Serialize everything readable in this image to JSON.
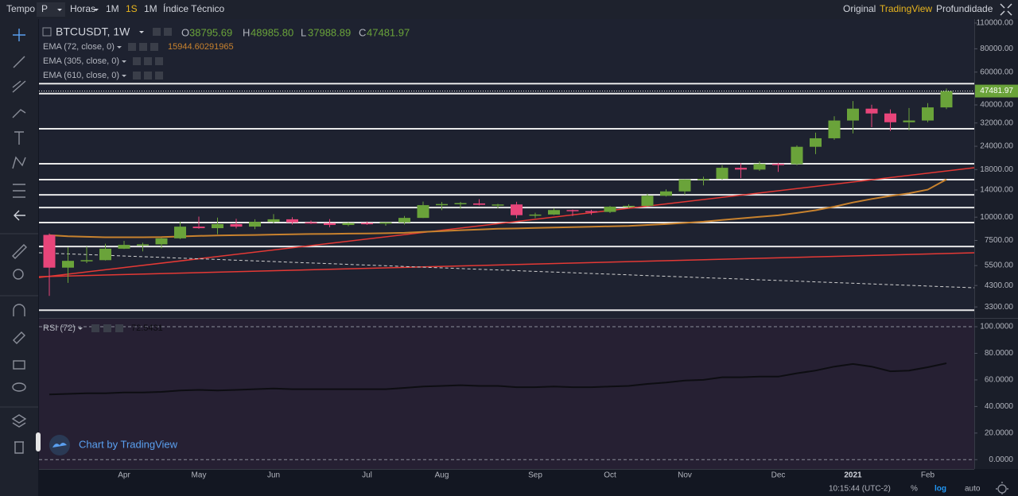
{
  "toolbar": {
    "left": [
      "Tempo",
      "P",
      "Horas",
      "1M",
      "1S",
      "1M",
      "Índice Técnico"
    ],
    "right": [
      "Original",
      "TradingView",
      "Profundidade"
    ]
  },
  "status_bar": {
    "time": "10:15:44 (UTC-2)",
    "buttons": [
      "%",
      "log",
      "auto"
    ]
  },
  "watermark": "Chart by TradingView",
  "chart_data": [
    {
      "type": "candlestick",
      "title": "BTCUSDT, 1W",
      "ohlc_labels": [
        "O",
        "H",
        "L",
        "C"
      ],
      "last_bar_labels": [
        "38795.69",
        "48985.80",
        "37988.89",
        "47481.97"
      ],
      "categories": [
        null,
        null,
        null,
        null,
        "Apr",
        null,
        null,
        null,
        "May",
        null,
        null,
        null,
        "Jun",
        null,
        null,
        null,
        null,
        "Jul",
        null,
        null,
        null,
        "Aug",
        null,
        null,
        null,
        null,
        "Sep",
        null,
        null,
        null,
        "Oct",
        null,
        null,
        null,
        "Nov",
        null,
        null,
        null,
        null,
        "Dec",
        null,
        null,
        null,
        "2021",
        null,
        null,
        null,
        "Feb",
        null
      ],
      "open": [
        8034,
        5361,
        5830,
        5881,
        6775,
        7100,
        7150,
        7700,
        8897,
        8730,
        9180,
        8900,
        9440,
        9740,
        9380,
        9290,
        9080,
        9300,
        9230,
        9380,
        9910,
        11600,
        11760,
        11850,
        11650,
        11700,
        10250,
        10330,
        10920,
        10770,
        10670,
        11380,
        11500,
        13030,
        13750,
        15950,
        16050,
        18400,
        18000,
        19300,
        19250,
        23850,
        26500,
        33000,
        38200,
        36000,
        32300,
        33000,
        38795.69
      ],
      "high": [
        8177,
        6900,
        6950,
        7200,
        7460,
        7293,
        7740,
        9460,
        10067,
        9950,
        9800,
        9740,
        10380,
        10000,
        9590,
        9770,
        9370,
        9480,
        9380,
        10150,
        12123,
        12060,
        12080,
        12490,
        11800,
        12090,
        10560,
        11180,
        10990,
        10950,
        11490,
        11720,
        13350,
        14100,
        15960,
        16490,
        19000,
        19470,
        19900,
        19570,
        24290,
        28400,
        34800,
        41950,
        40100,
        37850,
        38500,
        40900,
        48985.8
      ],
      "low": [
        3782,
        4442,
        5670,
        5857,
        6750,
        6555,
        6810,
        7630,
        8666,
        8100,
        8700,
        8630,
        9260,
        9130,
        9200,
        8830,
        8950,
        9100,
        9000,
        9130,
        9900,
        10900,
        11100,
        11560,
        11150,
        9880,
        9870,
        10270,
        10140,
        10300,
        10530,
        11200,
        11400,
        12900,
        13200,
        14800,
        15900,
        16200,
        17700,
        17500,
        19000,
        21800,
        26000,
        28130,
        30400,
        29000,
        29300,
        32300,
        37988.89
      ],
      "close": [
        5361,
        5830,
        5881,
        6775,
        7100,
        7150,
        7700,
        8897,
        8730,
        9180,
        8900,
        9440,
        9740,
        9380,
        9290,
        9080,
        9300,
        9230,
        9380,
        9910,
        11600,
        11760,
        11900,
        11650,
        11700,
        10250,
        10330,
        10920,
        10770,
        10670,
        11380,
        11500,
        13030,
        13750,
        15950,
        16050,
        18400,
        18000,
        19300,
        19250,
        23850,
        26500,
        33000,
        38200,
        36000,
        32300,
        33000,
        38800,
        47481.97
      ],
      "up_color": "#6aa33a",
      "down_color": "#e8457a",
      "log_scale": true,
      "ylim": [
        2880,
        115500
      ],
      "yticks": [
        {
          "value": 3300,
          "label": "3300.00"
        },
        {
          "value": 4300,
          "label": "4300.00"
        },
        {
          "value": 5500,
          "label": "5500.00"
        },
        {
          "value": 7500,
          "label": "7500.00"
        },
        {
          "value": 10000,
          "label": "10000.00"
        },
        {
          "value": 14000,
          "label": "14000.00"
        },
        {
          "value": 18000,
          "label": "18000.00"
        },
        {
          "value": 24000,
          "label": "24000.00"
        },
        {
          "value": 32000,
          "label": "32000.00"
        },
        {
          "value": 40000,
          "label": "40000.00"
        },
        {
          "value": 60000,
          "label": "60000.00"
        },
        {
          "value": 80000,
          "label": "80000.00"
        },
        {
          "value": 110000,
          "label": "110000.00"
        }
      ],
      "indicators": [
        {
          "name": "EMA (72, close, 0)",
          "color": "#c8822e",
          "values": [
            8000,
            7900,
            7850,
            7800,
            7800,
            7800,
            7820,
            7880,
            7930,
            7980,
            8000,
            8030,
            8070,
            8100,
            8120,
            8140,
            8160,
            8180,
            8200,
            8240,
            8330,
            8420,
            8510,
            8590,
            8670,
            8700,
            8750,
            8800,
            8840,
            8880,
            8930,
            8980,
            9080,
            9180,
            9320,
            9460,
            9660,
            9850,
            10040,
            10230,
            10530,
            10890,
            11390,
            11990,
            12520,
            13000,
            13420,
            14050,
            15944.60291965
          ]
        },
        {
          "name": "EMA (305, close, 0)"
        },
        {
          "name": "EMA (610, close, 0)"
        }
      ],
      "horizontal_lines": {
        "color": "#e8e8e8",
        "values": [
          3170,
          6960,
          9350,
          11260,
          13180,
          15900,
          19340,
          29800,
          46000,
          52000
        ]
      },
      "trend_lines": [
        {
          "color": "#e53935",
          "values": [
            4746,
            18410
          ]
        },
        {
          "color": "#e53935",
          "values": [
            4790,
            6440
          ]
        },
        {
          "color": "#d0d0d0",
          "dashed": true,
          "values": [
            6440,
            4180
          ]
        }
      ]
    },
    {
      "type": "line",
      "title": "RSI (72)",
      "color": "#0d0d12",
      "values": [
        49,
        49.5,
        50,
        50,
        50.5,
        50.5,
        51,
        52,
        52.5,
        52,
        52.5,
        53,
        53.5,
        53,
        53,
        53,
        53,
        53,
        53,
        54,
        55,
        55.5,
        56,
        55.5,
        55.5,
        54.5,
        54.5,
        55,
        54.5,
        54.5,
        55,
        55.5,
        57,
        58,
        59.5,
        60,
        62,
        62,
        62.5,
        62.5,
        65,
        67,
        70,
        72,
        70,
        66.5,
        67,
        69.5,
        72.5431
      ],
      "ylim": [
        -7,
        106
      ],
      "yticks": [
        {
          "value": 0,
          "label": "0.0000"
        },
        {
          "value": 20,
          "label": "20.0000"
        },
        {
          "value": 40,
          "label": "40.0000"
        },
        {
          "value": 60,
          "label": "60.0000"
        },
        {
          "value": 80,
          "label": "80.0000"
        },
        {
          "value": 100,
          "label": "100.0000"
        }
      ],
      "bands": [
        0,
        100
      ]
    }
  ]
}
